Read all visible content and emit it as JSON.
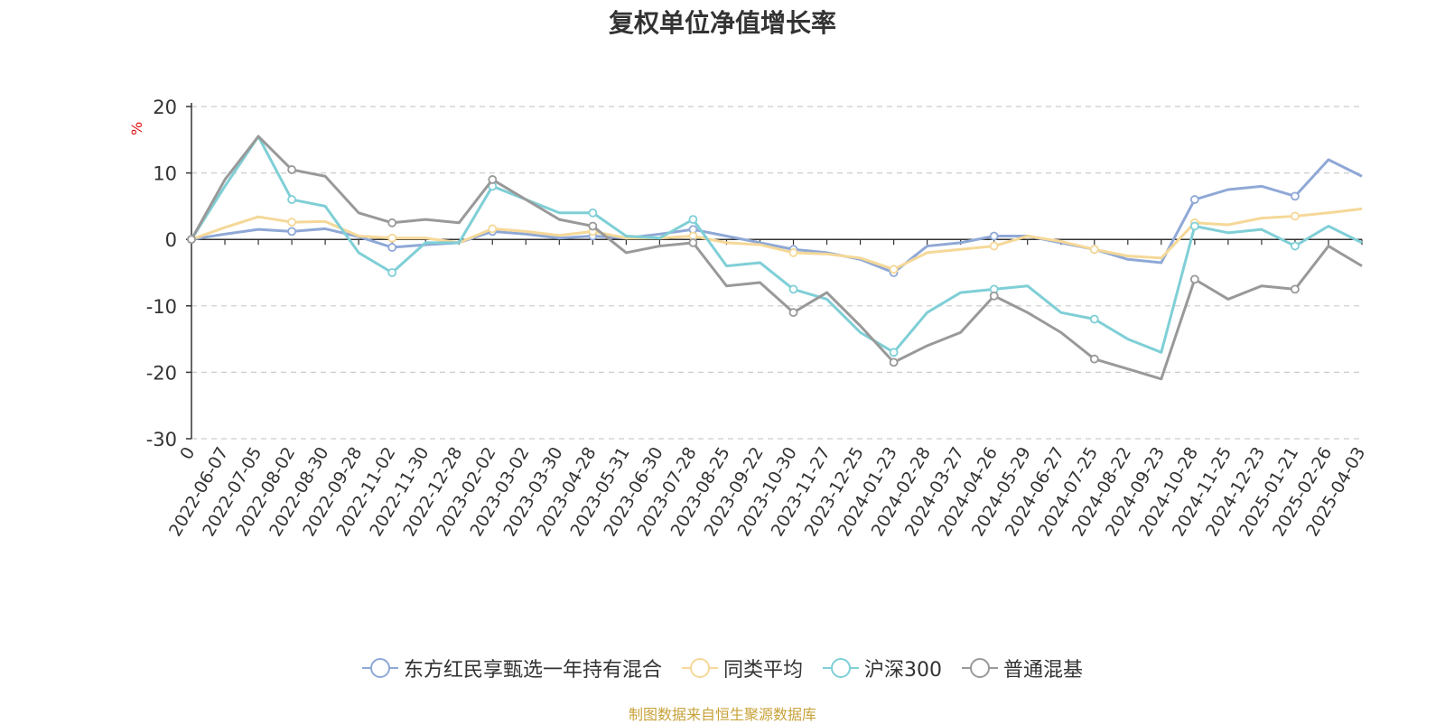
{
  "chart_data": {
    "type": "line",
    "title": "复权单位净值增长率",
    "ylabel": "%",
    "ylim": [
      -30,
      20
    ],
    "yticks": [
      "20",
      "10",
      "0",
      "-10",
      "-20",
      "-30"
    ],
    "grid": true,
    "legend_position": "bottom",
    "x_tick_labels": [
      "0",
      "2022-06-07",
      "2022-07-05",
      "2022-08-02",
      "2022-08-30",
      "2022-09-28",
      "2022-11-02",
      "2022-11-30",
      "2022-12-28",
      "2023-02-02",
      "2023-03-02",
      "2023-03-30",
      "2023-04-28",
      "2023-05-31",
      "2023-06-30",
      "2023-07-28",
      "2023-08-25",
      "2023-09-22",
      "2023-10-30",
      "2023-11-27",
      "2023-12-25",
      "2024-01-23",
      "2024-02-28",
      "2024-03-27",
      "2024-04-26",
      "2024-05-29",
      "2024-06-27",
      "2024-07-25",
      "2024-08-22",
      "2024-09-23",
      "2024-10-28",
      "2024-11-25",
      "2024-12-23",
      "2025-01-21",
      "2025-02-26",
      "2025-04-03"
    ],
    "series": [
      {
        "name": "东方红民享甄选一年持有混合",
        "color": "#8fa8d6",
        "values": [
          0,
          0.8,
          1.5,
          1.2,
          1.6,
          0.4,
          -1.2,
          -0.8,
          -0.5,
          1.2,
          0.8,
          0.2,
          0.5,
          0.2,
          0.8,
          1.5,
          0.5,
          -0.5,
          -1.5,
          -2.0,
          -3.0,
          -5.0,
          -1.0,
          -0.5,
          0.5,
          0.5,
          -0.5,
          -1.5,
          -3.0,
          -3.5,
          6.0,
          7.5,
          8.0,
          6.5,
          12.0,
          9.5
        ]
      },
      {
        "name": "同类平均",
        "color": "#f5d898",
        "values": [
          0,
          1.8,
          3.4,
          2.6,
          2.7,
          0.5,
          0.2,
          0.2,
          -0.5,
          1.6,
          1.2,
          0.6,
          1.2,
          0.2,
          0.2,
          0.5,
          -0.5,
          -0.8,
          -2.0,
          -2.2,
          -2.8,
          -4.5,
          -2.0,
          -1.5,
          -1.0,
          0.5,
          -0.3,
          -1.5,
          -2.5,
          -2.8,
          2.5,
          2.2,
          3.2,
          3.5,
          4.0,
          4.6
        ]
      },
      {
        "name": "沪深300",
        "color": "#7fcfd6",
        "values": [
          0,
          8.0,
          15.5,
          6.0,
          5.0,
          -2.0,
          -5.0,
          -0.5,
          -0.5,
          8.0,
          6.0,
          4.0,
          4.0,
          0.5,
          0.2,
          3.0,
          -4.0,
          -3.5,
          -7.5,
          -9.0,
          -14.0,
          -17.0,
          -11.0,
          -8.0,
          -7.5,
          -7.0,
          -11.0,
          -12.0,
          -15.0,
          -17.0,
          2.0,
          1.0,
          1.5,
          -1.0,
          2.0,
          -0.5
        ]
      },
      {
        "name": "普通混基",
        "color": "#999999",
        "values": [
          0,
          9.0,
          15.5,
          10.5,
          9.5,
          4.0,
          2.5,
          3.0,
          2.5,
          9.0,
          6.0,
          3.0,
          2.0,
          -2.0,
          -1.0,
          -0.5,
          -7.0,
          -6.5,
          -11.0,
          -8.0,
          -13.0,
          -18.5,
          -16.0,
          -14.0,
          -8.5,
          -11.0,
          -14.0,
          -18.0,
          -19.5,
          -21.0,
          -6.0,
          -9.0,
          -7.0,
          -7.5,
          -1.0,
          -4.0
        ]
      }
    ]
  },
  "source_note": "制图数据来自恒生聚源数据库"
}
